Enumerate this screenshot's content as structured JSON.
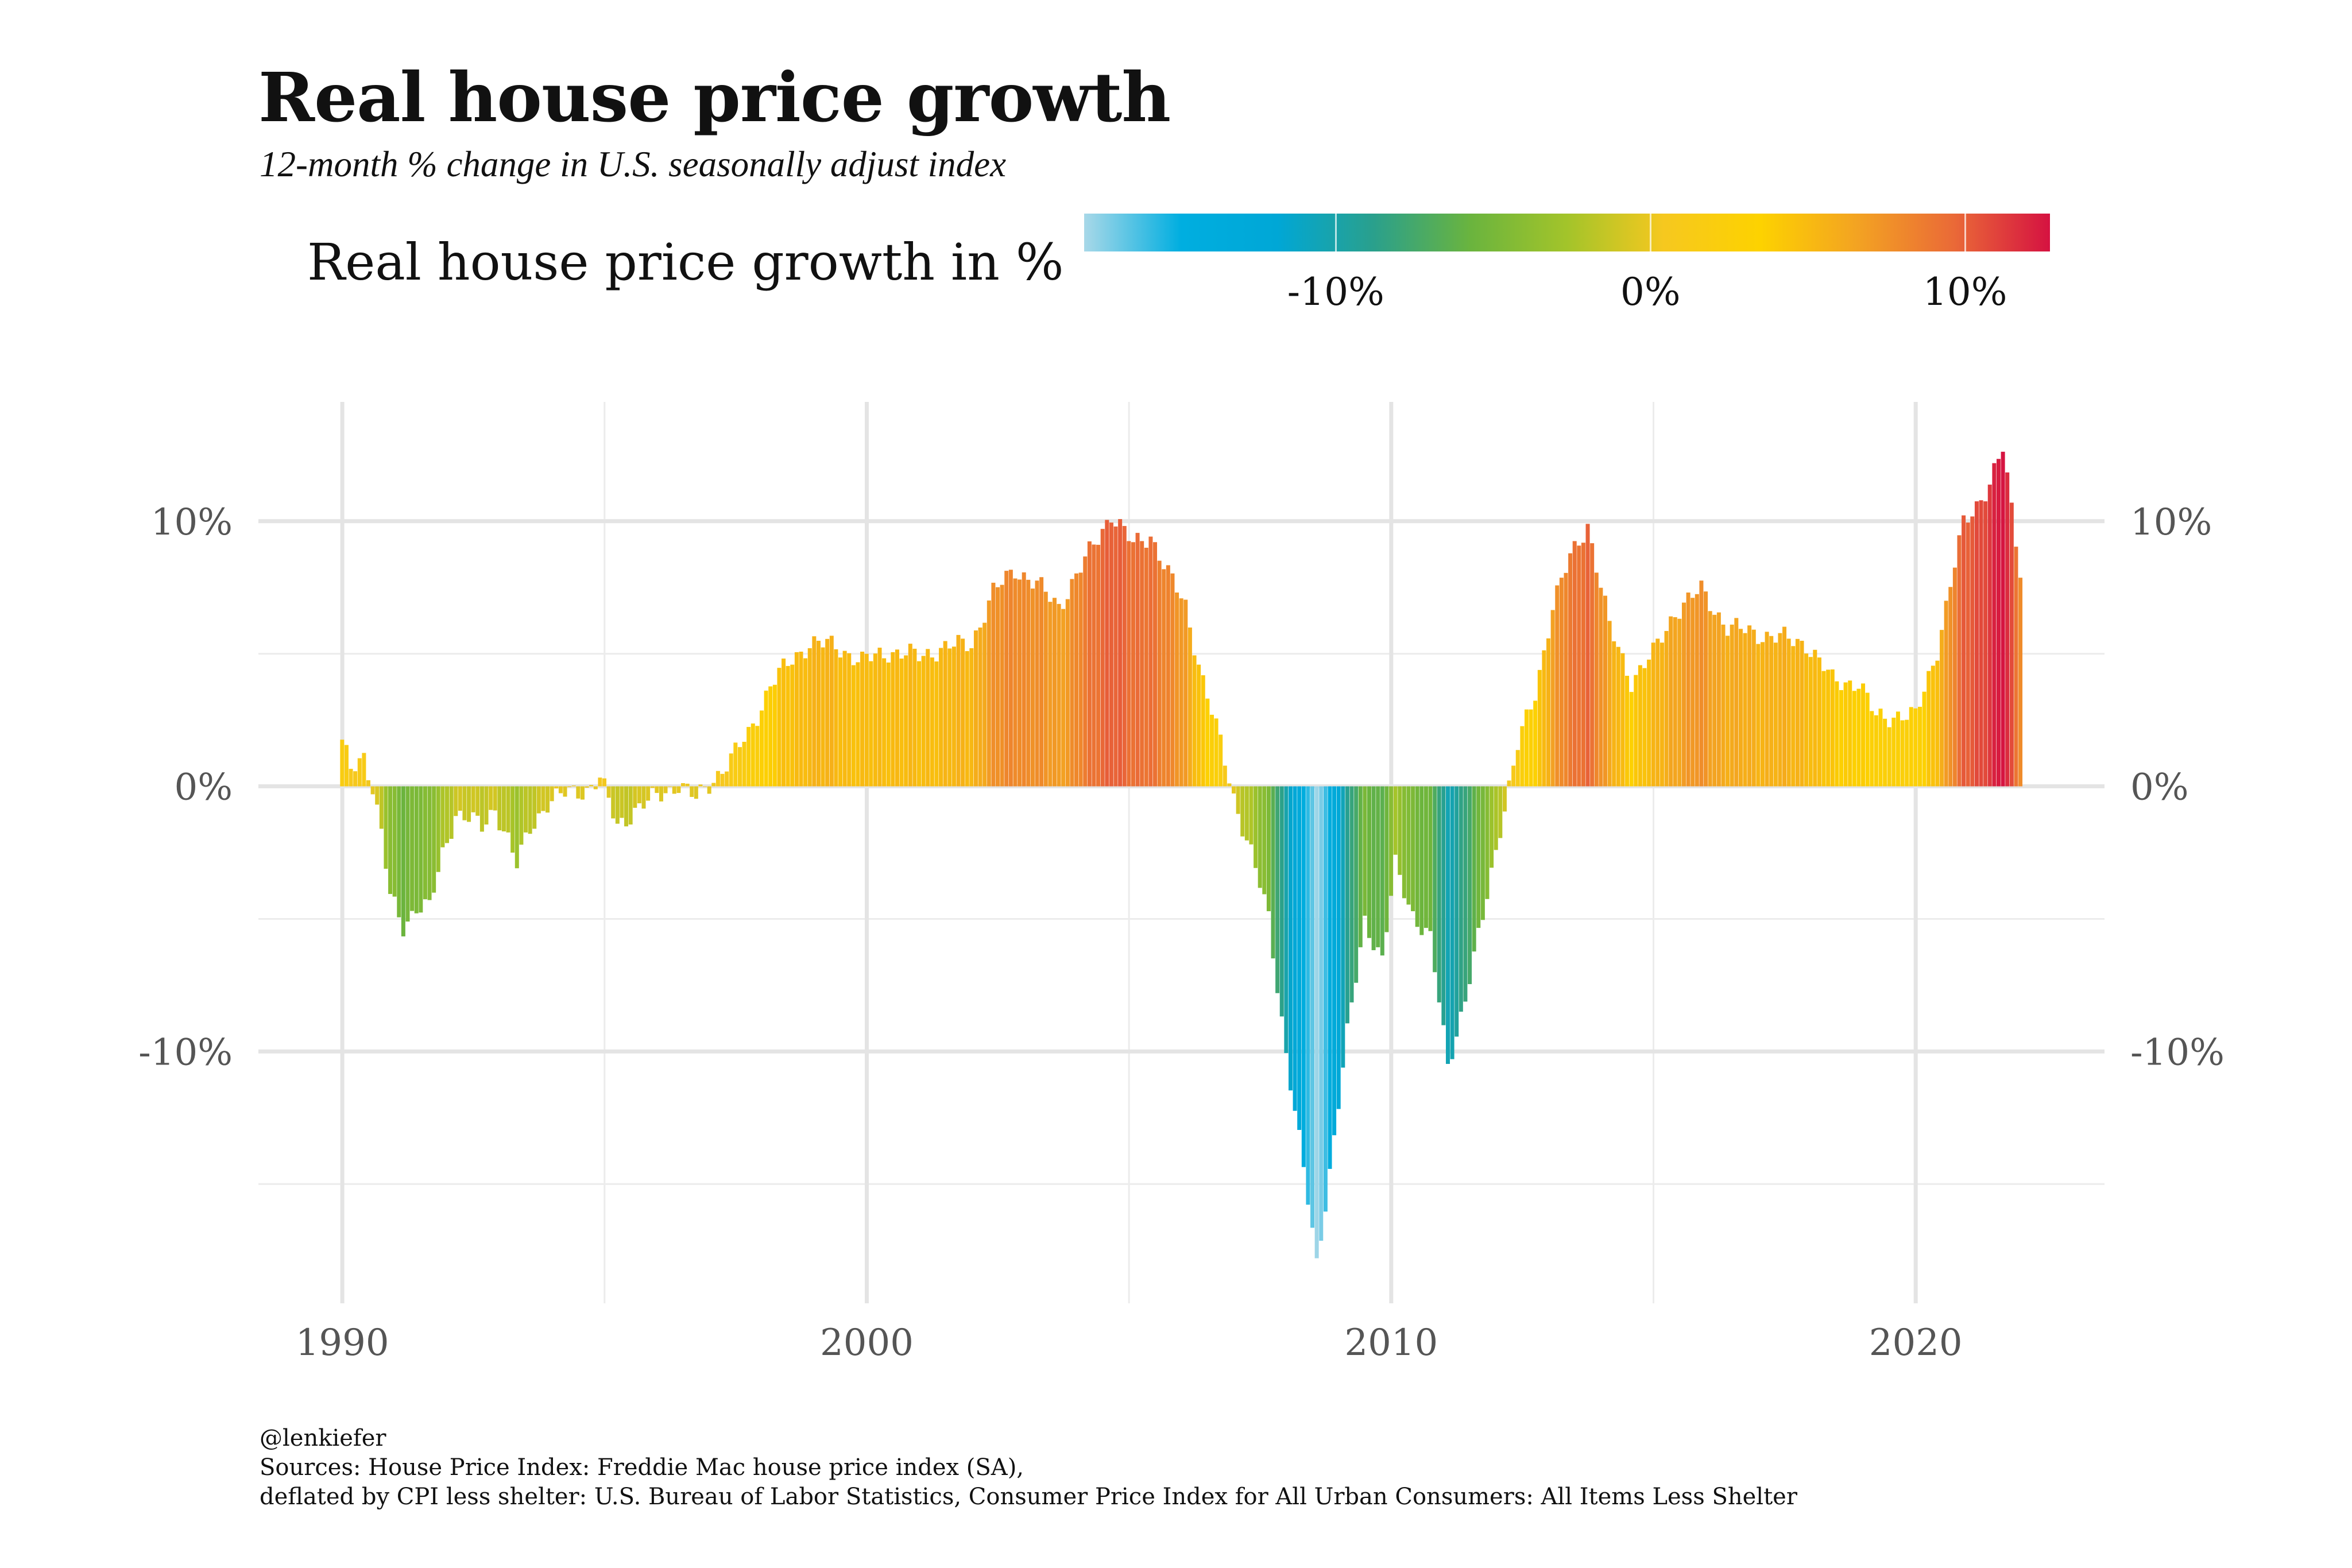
{
  "title": "Real house price growth",
  "subtitle": "12-month % change in U.S. seasonally adjust index",
  "legend": {
    "title": "Real house price growth in %",
    "ticks": [
      {
        "label": "-10%",
        "value": -10
      },
      {
        "label": "0%",
        "value": 0
      },
      {
        "label": "10%",
        "value": 10
      }
    ],
    "range": [
      -18,
      12.7
    ],
    "colors": [
      "#a8d8e8",
      "#00aee0",
      "#00a7d6",
      "#2aa08c",
      "#6ab43e",
      "#a3c42a",
      "#f6c81f",
      "#fdd200",
      "#f3a322",
      "#ea6a37",
      "#d51241"
    ]
  },
  "caption": [
    "@lenkiefer",
    "Sources: House Price Index: Freddie Mac house price index (SA),",
    "deflated by CPI less shelter: U.S. Bureau of Labor Statistics, Consumer Price Index for All Urban Consumers: All Items Less Shelter"
  ],
  "chart_data": {
    "type": "bar",
    "title": "Real house price growth",
    "subtitle": "12-month % change in U.S. seasonally adjust index",
    "xlabel": "",
    "ylabel": "",
    "x_ticks": [
      {
        "label": "1990",
        "value": 1990
      },
      {
        "label": "2000",
        "value": 2000
      },
      {
        "label": "2010",
        "value": 2010
      },
      {
        "label": "2020",
        "value": 2020
      }
    ],
    "y_ticks": [
      {
        "label": "10%",
        "value": 10
      },
      {
        "label": "0%",
        "value": 0
      },
      {
        "label": "-10%",
        "value": -10
      }
    ],
    "xlim": [
      1988.4,
      2023.6
    ],
    "ylim": [
      -19.5,
      14.5
    ],
    "grid": true,
    "x_start": "1990-01",
    "frequency": "monthly",
    "anchors": [
      [
        "1990-01",
        1.6
      ],
      [
        "1990-03",
        0.6
      ],
      [
        "1990-06",
        1.2
      ],
      [
        "1990-08",
        0.0
      ],
      [
        "1990-10",
        -1.8
      ],
      [
        "1990-12",
        -4.2
      ],
      [
        "1991-03",
        -5.3
      ],
      [
        "1991-06",
        -4.5
      ],
      [
        "1991-09",
        -4.6
      ],
      [
        "1991-12",
        -2.6
      ],
      [
        "1992-03",
        -1.0
      ],
      [
        "1992-06",
        -1.2
      ],
      [
        "1992-09",
        -1.6
      ],
      [
        "1992-12",
        -0.8
      ],
      [
        "1993-03",
        -2.0
      ],
      [
        "1993-05",
        -3.0
      ],
      [
        "1993-08",
        -1.6
      ],
      [
        "1993-12",
        -0.6
      ],
      [
        "1994-04",
        -0.3
      ],
      [
        "1994-09",
        -0.1
      ],
      [
        "1994-12",
        0.3
      ],
      [
        "1995-04",
        -1.5
      ],
      [
        "1995-08",
        -0.9
      ],
      [
        "1995-12",
        -0.5
      ],
      [
        "1996-06",
        0.1
      ],
      [
        "1996-10",
        -0.5
      ],
      [
        "1997-02",
        0.3
      ],
      [
        "1997-06",
        1.0
      ],
      [
        "1997-10",
        2.0
      ],
      [
        "1998-03",
        3.8
      ],
      [
        "1998-08",
        4.8
      ],
      [
        "1998-12",
        5.4
      ],
      [
        "1999-06",
        5.3
      ],
      [
        "1999-12",
        4.7
      ],
      [
        "2000-06",
        5.1
      ],
      [
        "2001-01",
        4.9
      ],
      [
        "2001-06",
        5.2
      ],
      [
        "2002-01",
        5.4
      ],
      [
        "2002-06",
        7.3
      ],
      [
        "2002-11",
        8.2
      ],
      [
        "2003-04",
        7.6
      ],
      [
        "2003-09",
        6.8
      ],
      [
        "2004-03",
        8.5
      ],
      [
        "2004-09",
        10.3
      ],
      [
        "2005-02",
        9.1
      ],
      [
        "2005-06",
        9.5
      ],
      [
        "2005-10",
        8.0
      ],
      [
        "2006-02",
        6.8
      ],
      [
        "2006-06",
        4.0
      ],
      [
        "2006-10",
        1.6
      ],
      [
        "2007-01",
        -0.4
      ],
      [
        "2007-05",
        -2.5
      ],
      [
        "2007-09",
        -5.0
      ],
      [
        "2008-01",
        -10.0
      ],
      [
        "2008-05",
        -14.5
      ],
      [
        "2008-08",
        -18.0
      ],
      [
        "2008-11",
        -14.5
      ],
      [
        "2009-03",
        -9.4
      ],
      [
        "2009-07",
        -5.0
      ],
      [
        "2009-11",
        -6.6
      ],
      [
        "2010-02",
        -3.0
      ],
      [
        "2010-06",
        -4.8
      ],
      [
        "2010-10",
        -5.8
      ],
      [
        "2011-02",
        -10.5
      ],
      [
        "2011-06",
        -8.0
      ],
      [
        "2011-10",
        -5.0
      ],
      [
        "2012-02",
        -1.5
      ],
      [
        "2012-06",
        1.5
      ],
      [
        "2012-10",
        3.5
      ],
      [
        "2013-02",
        6.8
      ],
      [
        "2013-06",
        8.6
      ],
      [
        "2013-10",
        9.9
      ],
      [
        "2014-03",
        6.0
      ],
      [
        "2014-08",
        4.0
      ],
      [
        "2015-01",
        5.0
      ],
      [
        "2015-06",
        6.6
      ],
      [
        "2015-12",
        7.4
      ],
      [
        "2016-06",
        6.0
      ],
      [
        "2016-12",
        5.8
      ],
      [
        "2017-06",
        5.6
      ],
      [
        "2017-12",
        5.4
      ],
      [
        "2018-06",
        4.0
      ],
      [
        "2018-12",
        3.9
      ],
      [
        "2019-04",
        2.6
      ],
      [
        "2019-09",
        2.7
      ],
      [
        "2020-01",
        2.6
      ],
      [
        "2020-06",
        5.2
      ],
      [
        "2020-12",
        9.9
      ],
      [
        "2021-06",
        11.4
      ],
      [
        "2021-09",
        12.7
      ],
      [
        "2022-01",
        8.2
      ]
    ]
  }
}
